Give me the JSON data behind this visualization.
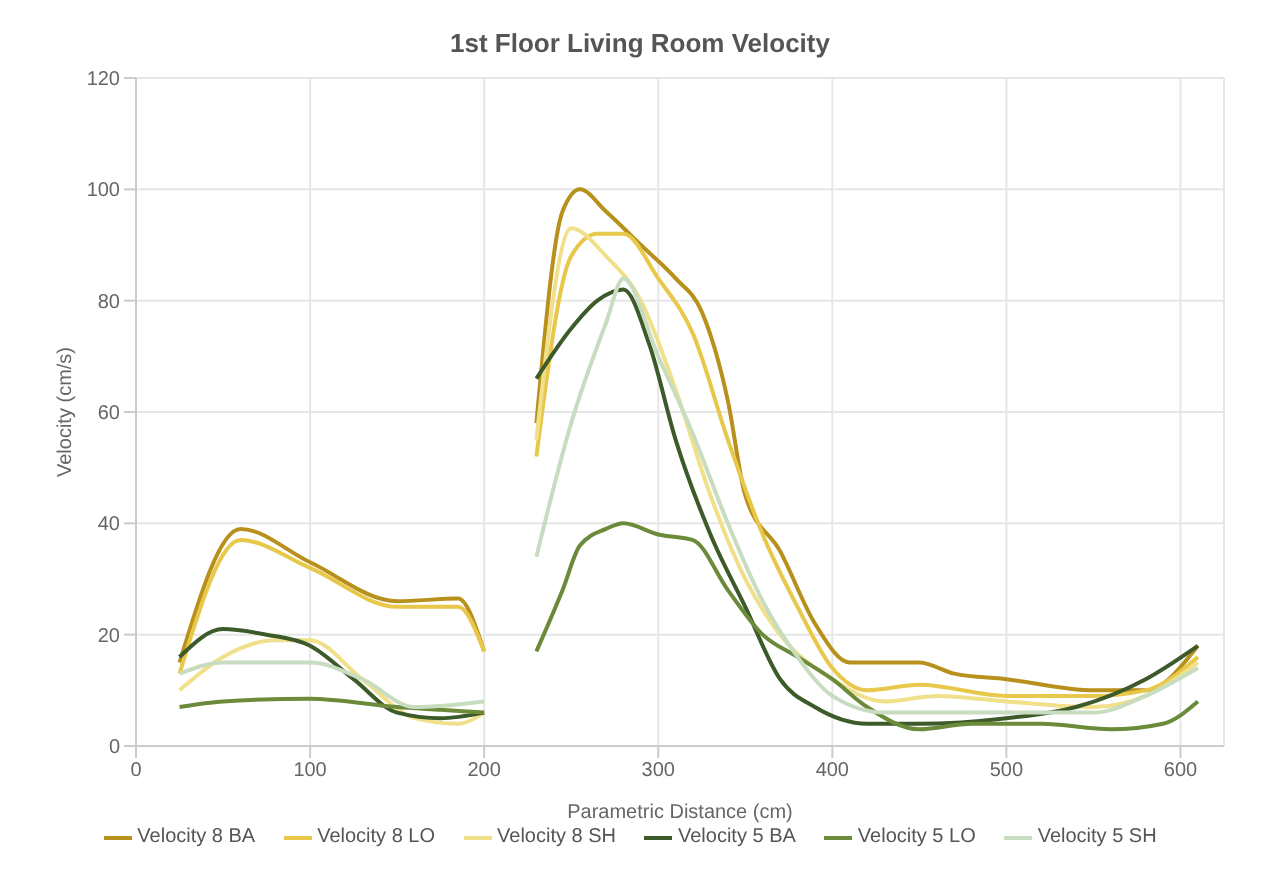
{
  "chart_data": {
    "type": "line",
    "title": "1st Floor Living Room Velocity",
    "xlabel": "Parametric Distance (cm)",
    "ylabel": "Velocity (cm/s)",
    "xlim": [
      0,
      625
    ],
    "xticks": [
      0,
      100,
      200,
      300,
      400,
      500,
      600
    ],
    "ylim": [
      0,
      120
    ],
    "yticks": [
      0,
      20,
      40,
      60,
      80,
      100,
      120
    ],
    "grid": true,
    "legend": "bottom",
    "marker": "none",
    "line_style": "solid",
    "series": [
      {
        "name": "Velocity 8 BA",
        "color": "#b8901c",
        "x": [
          25,
          60,
          100,
          150,
          185,
          200,
          215,
          230,
          245,
          255,
          270,
          290,
          310,
          325,
          340,
          350,
          370,
          390,
          410,
          450,
          470,
          500,
          550,
          580,
          610
        ],
        "values": [
          15,
          39,
          33,
          26,
          26.5,
          17,
          null,
          58,
          96,
          100,
          96,
          90,
          84,
          78,
          62,
          45,
          35,
          22,
          15,
          15,
          13,
          12,
          10,
          10,
          18
        ]
      },
      {
        "name": "Velocity 8 LO",
        "color": "#e8c84a",
        "x": [
          25,
          60,
          100,
          150,
          185,
          200,
          215,
          230,
          250,
          265,
          280,
          300,
          320,
          340,
          360,
          380,
          400,
          420,
          450,
          500,
          550,
          580,
          610
        ],
        "values": [
          13,
          37,
          32,
          25,
          25,
          17,
          null,
          52,
          88,
          92,
          92,
          84,
          74,
          55,
          38,
          25,
          14,
          10,
          11,
          9,
          9,
          10,
          16
        ]
      },
      {
        "name": "Velocity 8 SH",
        "color": "#f0e08a",
        "x": [
          25,
          50,
          80,
          100,
          130,
          160,
          185,
          200,
          215,
          230,
          250,
          270,
          290,
          310,
          330,
          350,
          370,
          400,
          430,
          460,
          500,
          550,
          580,
          610
        ],
        "values": [
          10,
          16,
          19,
          19,
          12,
          5,
          4,
          6,
          null,
          55,
          93,
          88,
          80,
          64,
          45,
          30,
          20,
          12,
          8,
          9,
          8,
          7,
          9,
          15
        ]
      },
      {
        "name": "Velocity 5 BA",
        "color": "#3d5a2a",
        "x": [
          25,
          50,
          75,
          100,
          125,
          150,
          175,
          200,
          215,
          230,
          250,
          265,
          280,
          295,
          310,
          330,
          350,
          370,
          390,
          420,
          450,
          500,
          540,
          580,
          610
        ],
        "values": [
          16,
          21,
          20,
          18,
          12,
          6,
          5,
          6,
          null,
          66,
          75,
          80,
          82,
          72,
          55,
          38,
          25,
          12,
          7,
          4,
          4,
          5,
          7,
          12,
          18
        ]
      },
      {
        "name": "Velocity 5 LO",
        "color": "#6b8a3a",
        "x": [
          25,
          50,
          100,
          150,
          175,
          200,
          215,
          230,
          245,
          255,
          270,
          280,
          300,
          320,
          340,
          360,
          380,
          400,
          420,
          450,
          480,
          520,
          560,
          590,
          610
        ],
        "values": [
          7,
          8,
          8.5,
          7,
          6.5,
          6,
          null,
          17,
          28,
          36,
          39,
          40,
          38,
          37,
          28,
          20,
          16,
          12,
          7,
          3,
          4,
          4,
          3,
          4,
          8
        ]
      },
      {
        "name": "Velocity 5 SH",
        "color": "#c8dcc0",
        "x": [
          25,
          50,
          100,
          130,
          160,
          200,
          215,
          230,
          250,
          270,
          280,
          300,
          320,
          340,
          360,
          380,
          400,
          430,
          460,
          500,
          550,
          580,
          610
        ],
        "values": [
          13,
          15,
          15,
          12,
          7,
          8,
          null,
          34,
          58,
          76,
          84,
          70,
          56,
          40,
          26,
          16,
          9,
          6,
          6,
          6,
          6,
          9,
          14
        ]
      }
    ]
  }
}
